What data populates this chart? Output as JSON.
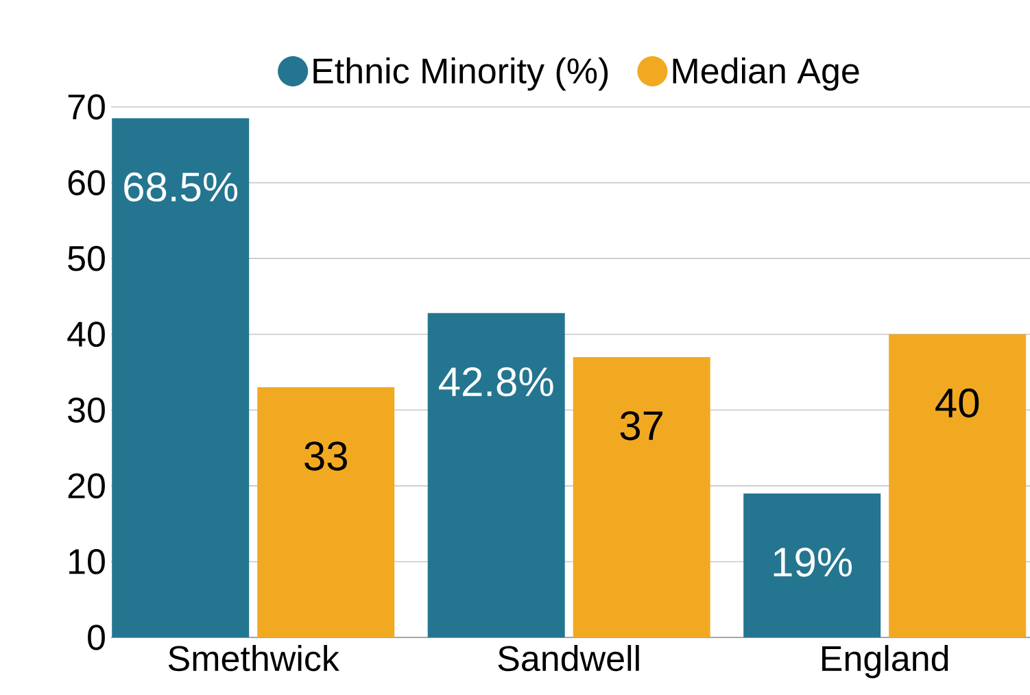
{
  "chart_data": {
    "type": "bar",
    "categories": [
      "Smethwick",
      "Sandwell",
      "England"
    ],
    "series": [
      {
        "name": "Ethnic Minority (%)",
        "color": "#247590",
        "values": [
          68.5,
          42.8,
          19
        ],
        "value_labels": [
          "68.5%",
          "42.8%",
          "19%"
        ]
      },
      {
        "name": "Median Age",
        "color": "#f2a922",
        "values": [
          33,
          37,
          40
        ],
        "value_labels": [
          "33",
          "37",
          "40"
        ]
      }
    ],
    "ylim": [
      0,
      70
    ],
    "yticks": [
      0,
      10,
      20,
      30,
      40,
      50,
      60,
      70
    ],
    "grid": "y",
    "legend": "top"
  }
}
